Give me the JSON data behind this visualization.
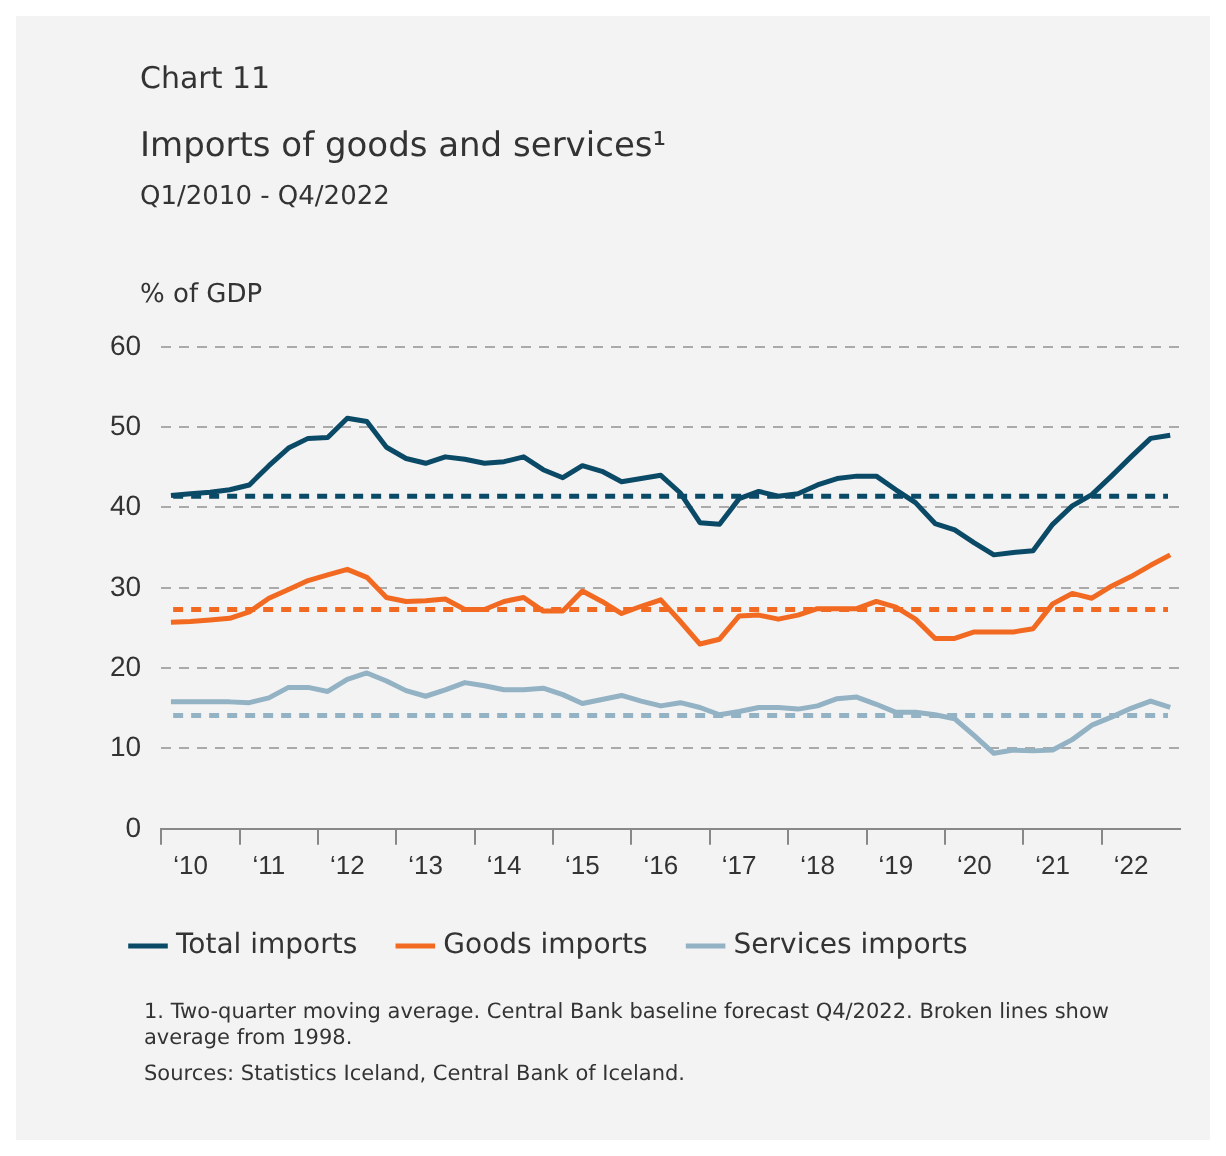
{
  "chart_data": {
    "type": "line",
    "title": "Imports of goods and services¹",
    "subtitle": "Q1/2010 - Q4/2022",
    "ylabel": "% of GDP",
    "annotations": [
      "Chart 11",
      "1. Two-quarter moving average.  Central Bank baseline forecast Q4/2022.  Broken lines show average from 1998.",
      "Sources: Statistics Iceland, Central Bank of Iceland."
    ],
    "categories": [
      null,
      "‘10",
      null,
      null,
      null,
      "‘11",
      null,
      null,
      null,
      "‘12",
      null,
      null,
      null,
      "‘13",
      null,
      null,
      null,
      "‘14",
      null,
      null,
      null,
      "‘15",
      null,
      null,
      null,
      "‘16",
      null,
      null,
      null,
      "‘17",
      null,
      null,
      null,
      "‘18",
      null,
      null,
      null,
      "‘19",
      null,
      null,
      null,
      "‘20",
      null,
      null,
      null,
      "‘21",
      null,
      null,
      null,
      "‘22",
      null,
      null
    ],
    "series": [
      {
        "name": "Total imports",
        "color": "#0b4a66",
        "values": [
          41.5,
          41.7,
          41.9,
          42.2,
          42.8,
          45.2,
          47.4,
          48.6,
          48.7,
          51.1,
          50.7,
          47.5,
          46.1,
          45.5,
          46.3,
          46,
          45.5,
          45.7,
          46.3,
          44.7,
          43.7,
          45.2,
          44.5,
          43.2,
          43.6,
          44,
          41.8,
          38.1,
          37.9,
          41.1,
          42,
          41.4,
          41.7,
          42.8,
          43.6,
          43.9,
          43.9,
          42.2,
          40.6,
          38,
          37.2,
          35.6,
          34.1,
          34.4,
          34.6,
          37.9,
          40.2,
          41.6,
          43.9,
          46.3,
          48.6,
          49
        ]
      },
      {
        "name": "Goods imports",
        "color": "#f26a21",
        "values": [
          25.7,
          25.8,
          26,
          26.2,
          27,
          28.7,
          29.8,
          30.9,
          31.6,
          32.3,
          31.3,
          28.8,
          28.3,
          28.4,
          28.6,
          27.3,
          27.3,
          28.3,
          28.8,
          27.1,
          27.1,
          29.6,
          28.3,
          26.8,
          27.7,
          28.5,
          25.8,
          23,
          23.6,
          26.5,
          26.6,
          26.1,
          26.6,
          27.4,
          27.4,
          27.4,
          28.3,
          27.6,
          26.1,
          23.7,
          23.7,
          24.5,
          24.5,
          24.5,
          24.9,
          28,
          29.3,
          28.7,
          30.2,
          31.4,
          32.8,
          34.1
        ]
      },
      {
        "name": "Services imports",
        "color": "#93b2c4",
        "values": [
          15.8,
          15.8,
          15.8,
          15.8,
          15.7,
          16.3,
          17.6,
          17.6,
          17.1,
          18.6,
          19.4,
          18.4,
          17.2,
          16.5,
          17.3,
          18.2,
          17.8,
          17.3,
          17.3,
          17.5,
          16.7,
          15.6,
          16.1,
          16.6,
          15.9,
          15.3,
          15.7,
          15.1,
          14.2,
          14.6,
          15.1,
          15.1,
          14.9,
          15.3,
          16.2,
          16.4,
          15.5,
          14.5,
          14.5,
          14.2,
          13.7,
          11.6,
          9.4,
          9.8,
          9.7,
          9.8,
          11.1,
          12.9,
          13.9,
          15,
          15.9,
          15.1
        ]
      }
    ],
    "ref_lines": [
      {
        "axis": "y",
        "value": 41.4,
        "color": "#0b4a66",
        "line_style": "dashed"
      },
      {
        "axis": "y",
        "value": 27.3,
        "color": "#f26a21",
        "line_style": "dashed"
      },
      {
        "axis": "y",
        "value": 14.1,
        "color": "#93b2c4",
        "line_style": "dashed"
      }
    ],
    "ylim": [
      0,
      60
    ],
    "yticks": [
      0,
      10,
      20,
      30,
      40,
      50,
      60
    ],
    "grid": "y",
    "legend": "bottom",
    "marker": "none",
    "line_style": "solid"
  }
}
